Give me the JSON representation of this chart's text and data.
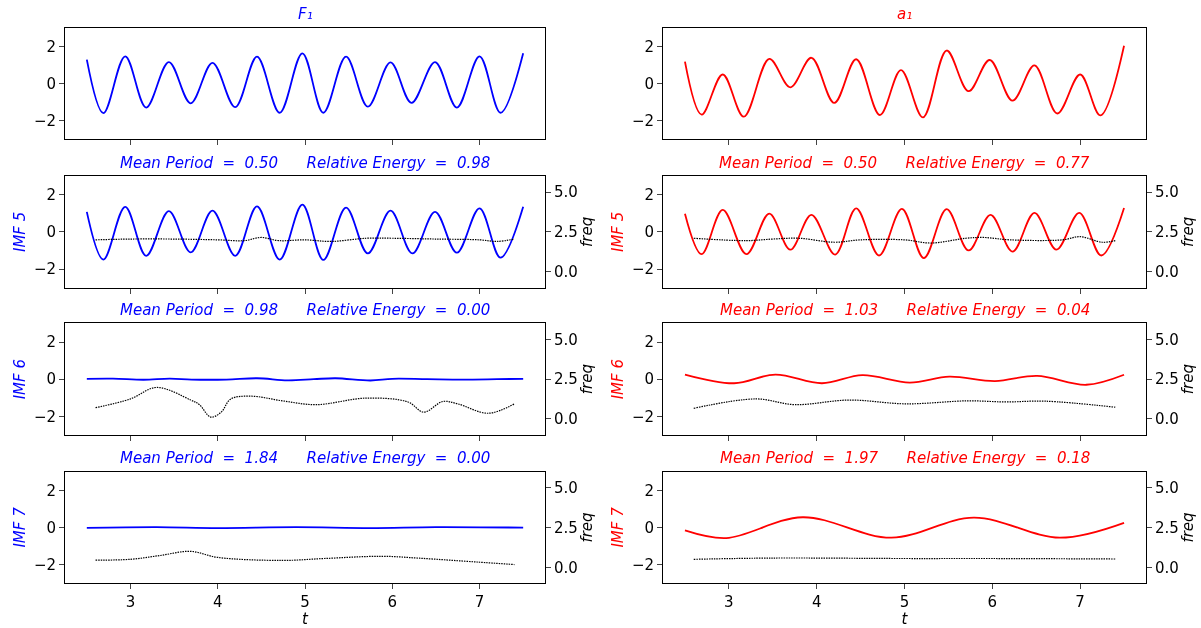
{
  "chart_data": [
    {
      "type": "line",
      "title": "F₁",
      "xlim": [
        2.25,
        7.75
      ],
      "xticks": [
        3,
        4,
        5,
        6,
        7
      ],
      "ylim": [
        -3,
        3
      ],
      "yticks": [
        -2,
        0,
        2
      ],
      "tick_labels": "y",
      "series": [
        {
          "color": "#0000ff",
          "x": [
            2.5,
            2.69,
            2.94,
            3.18,
            3.44,
            3.69,
            3.94,
            4.2,
            4.45,
            4.71,
            4.97,
            5.21,
            5.47,
            5.72,
            5.98,
            6.22,
            6.49,
            6.74,
            7.0,
            7.24,
            7.5
          ],
          "values": [
            1.29,
            -1.59,
            1.47,
            -1.29,
            1.16,
            -1.06,
            1.12,
            -1.27,
            1.45,
            -1.57,
            1.63,
            -1.57,
            1.45,
            -1.24,
            1.14,
            -1.04,
            1.16,
            -1.29,
            1.47,
            -1.57,
            1.63
          ]
        }
      ]
    },
    {
      "type": "line",
      "title": "a₁",
      "xlim": [
        2.25,
        7.75
      ],
      "xticks": [
        3,
        4,
        5,
        6,
        7
      ],
      "ylim": [
        -3,
        3
      ],
      "yticks": [
        -2,
        0,
        2
      ],
      "tick_labels": "y",
      "series": [
        {
          "color": "#ff0000",
          "x": [
            2.5,
            2.69,
            2.93,
            3.17,
            3.46,
            3.7,
            3.94,
            4.2,
            4.45,
            4.72,
            4.96,
            5.21,
            5.48,
            5.73,
            5.97,
            6.23,
            6.48,
            6.74,
            7.0,
            7.23,
            7.5
          ],
          "values": [
            1.18,
            -1.67,
            0.49,
            -1.78,
            1.33,
            -0.2,
            1.39,
            -1.04,
            1.31,
            -1.69,
            0.73,
            -1.82,
            1.78,
            -0.41,
            1.27,
            -0.92,
            0.98,
            -1.61,
            0.49,
            -1.71,
            2.04
          ]
        }
      ]
    },
    {
      "type": "line",
      "title": "Mean Period  =  0.50      Relative Energy  =  0.98",
      "ylabel": "IMF 5",
      "y2label": "freq",
      "xlim": [
        2.25,
        7.75
      ],
      "xticks": [
        3,
        4,
        5,
        6,
        7
      ],
      "ylim": [
        -3,
        3
      ],
      "yticks": [
        -2,
        0,
        2
      ],
      "y2lim": [
        -1,
        6
      ],
      "y2ticks": [
        {
          "value": 0,
          "label": "0.0"
        },
        {
          "value": 2.5,
          "label": "2.5"
        },
        {
          "value": 5,
          "label": "5.0"
        }
      ],
      "tick_labels": "y",
      "series": [
        {
          "color": "#0000ff",
          "x": [
            2.5,
            2.69,
            2.94,
            3.18,
            3.44,
            3.69,
            3.94,
            4.2,
            4.45,
            4.71,
            4.97,
            5.21,
            5.47,
            5.72,
            5.98,
            6.23,
            6.49,
            6.74,
            7.0,
            7.24,
            7.5
          ],
          "values": [
            1.08,
            -1.49,
            1.35,
            -1.29,
            1.12,
            -1.1,
            1.14,
            -1.29,
            1.37,
            -1.49,
            1.47,
            -1.51,
            1.31,
            -1.16,
            1.14,
            -1.16,
            1.08,
            -1.12,
            1.27,
            -1.39,
            1.35
          ]
        },
        {
          "color": "#000000",
          "axis": "y2",
          "line_style": "dotted",
          "x": [
            2.6,
            3.0,
            3.5,
            4.0,
            4.3,
            4.5,
            4.7,
            5.0,
            5.3,
            5.7,
            6.0,
            6.5,
            7.0,
            7.2,
            7.4
          ],
          "values": [
            2.0,
            2.05,
            2.05,
            2.0,
            1.95,
            2.15,
            1.95,
            2.0,
            1.9,
            2.1,
            2.1,
            2.05,
            2.0,
            1.9,
            2.05
          ]
        }
      ]
    },
    {
      "type": "line",
      "title": "Mean Period  =  0.50      Relative Energy  =  0.77",
      "ylabel": "IMF 5",
      "y2label": "freq",
      "xlim": [
        2.25,
        7.75
      ],
      "xticks": [
        3,
        4,
        5,
        6,
        7
      ],
      "ylim": [
        -3,
        3
      ],
      "yticks": [
        -2,
        0,
        2
      ],
      "y2lim": [
        -1,
        6
      ],
      "y2ticks": [
        {
          "value": 0,
          "label": "0.0"
        },
        {
          "value": 2.5,
          "label": "2.5"
        },
        {
          "value": 5,
          "label": "5.0"
        }
      ],
      "tick_labels": "y",
      "series": [
        {
          "color": "#ff0000",
          "x": [
            2.5,
            2.69,
            2.93,
            3.2,
            3.46,
            3.7,
            3.94,
            4.21,
            4.45,
            4.71,
            4.97,
            5.22,
            5.48,
            5.73,
            5.98,
            6.23,
            6.48,
            6.73,
            6.99,
            7.24,
            7.5
          ],
          "values": [
            0.98,
            -1.2,
            1.18,
            -1.2,
            0.98,
            -0.96,
            0.92,
            -1.22,
            1.27,
            -1.27,
            1.24,
            -1.41,
            1.22,
            -1.0,
            0.92,
            -1.06,
            1.02,
            -0.96,
            1.02,
            -1.27,
            1.29
          ]
        },
        {
          "color": "#000000",
          "axis": "y2",
          "line_style": "dotted",
          "x": [
            2.6,
            3.2,
            3.5,
            3.8,
            4.2,
            4.5,
            5.0,
            5.3,
            5.7,
            5.9,
            6.2,
            6.8,
            7.0,
            7.25,
            7.4
          ],
          "values": [
            2.1,
            1.95,
            2.05,
            2.1,
            1.85,
            2.0,
            2.0,
            1.8,
            2.1,
            2.15,
            2.0,
            2.0,
            2.2,
            1.85,
            1.95
          ]
        }
      ]
    },
    {
      "type": "line",
      "title": "Mean Period  =  0.98      Relative Energy  =  0.00",
      "ylabel": "IMF 6",
      "y2label": "freq",
      "xlim": [
        2.25,
        7.75
      ],
      "xticks": [
        3,
        4,
        5,
        6,
        7
      ],
      "ylim": [
        -3,
        3
      ],
      "yticks": [
        -2,
        0,
        2
      ],
      "y2lim": [
        -1,
        6
      ],
      "y2ticks": [
        {
          "value": 0,
          "label": "0.0"
        },
        {
          "value": 2.5,
          "label": "2.5"
        },
        {
          "value": 5,
          "label": "5.0"
        }
      ],
      "tick_labels": "y",
      "series": [
        {
          "color": "#0000ff",
          "x": [
            2.5,
            2.8,
            3.15,
            3.45,
            3.7,
            4.1,
            4.45,
            4.8,
            5.1,
            5.35,
            5.75,
            6.0,
            6.4,
            6.8,
            7.2,
            7.5
          ],
          "values": [
            0.02,
            0.03,
            -0.03,
            0.03,
            -0.02,
            -0.02,
            0.05,
            -0.06,
            0.0,
            0.05,
            -0.07,
            0.02,
            0.0,
            -0.02,
            0.0,
            0.02
          ]
        },
        {
          "color": "#000000",
          "axis": "y2",
          "line_style": "dotted",
          "x": [
            2.6,
            3.0,
            3.3,
            3.69,
            3.79,
            3.92,
            4.04,
            4.15,
            4.39,
            4.74,
            5.13,
            5.7,
            6.18,
            6.36,
            6.58,
            6.75,
            7.1,
            7.4
          ],
          "values": [
            0.71,
            1.26,
            1.98,
            1.19,
            0.9,
            0.12,
            0.43,
            1.26,
            1.43,
            1.14,
            0.9,
            1.31,
            1.07,
            0.43,
            1.1,
            0.95,
            0.36,
            0.95
          ]
        }
      ]
    },
    {
      "type": "line",
      "title": "Mean Period  =  1.03      Relative Energy  =  0.04",
      "ylabel": "IMF 6",
      "y2label": "freq",
      "xlim": [
        2.25,
        7.75
      ],
      "xticks": [
        3,
        4,
        5,
        6,
        7
      ],
      "ylim": [
        -3,
        3
      ],
      "yticks": [
        -2,
        0,
        2
      ],
      "y2lim": [
        -1,
        6
      ],
      "y2ticks": [
        {
          "value": 0,
          "label": "0.0"
        },
        {
          "value": 2.5,
          "label": "2.5"
        },
        {
          "value": 5,
          "label": "5.0"
        }
      ],
      "tick_labels": "y",
      "series": [
        {
          "color": "#ff0000",
          "x": [
            2.5,
            3.06,
            3.53,
            4.06,
            4.52,
            5.06,
            5.51,
            6.03,
            6.51,
            7.07,
            7.5
          ],
          "values": [
            0.25,
            -0.22,
            0.25,
            -0.22,
            0.22,
            -0.18,
            0.14,
            -0.1,
            0.18,
            -0.3,
            0.24
          ]
        },
        {
          "color": "#000000",
          "axis": "y2",
          "line_style": "dotted",
          "x": [
            2.6,
            3.31,
            3.75,
            4.37,
            5.02,
            5.72,
            6.16,
            6.6,
            7.4
          ],
          "values": [
            0.67,
            1.26,
            0.9,
            1.19,
            0.95,
            1.14,
            1.07,
            1.12,
            0.74
          ]
        }
      ]
    },
    {
      "type": "line",
      "title": "Mean Period  =  1.84      Relative Energy  =  0.00",
      "ylabel": "IMF 7",
      "y2label": "freq",
      "xlabel": "t",
      "xlim": [
        2.25,
        7.75
      ],
      "xticks": [
        3,
        4,
        5,
        6,
        7
      ],
      "ylim": [
        -3,
        3
      ],
      "yticks": [
        -2,
        0,
        2
      ],
      "y2lim": [
        -1,
        6
      ],
      "y2ticks": [
        {
          "value": 0,
          "label": "0.0"
        },
        {
          "value": 2.5,
          "label": "2.5"
        },
        {
          "value": 5,
          "label": "5.0"
        }
      ],
      "series": [
        {
          "color": "#0000ff",
          "x": [
            2.5,
            3.3,
            4.0,
            4.9,
            5.75,
            6.5,
            7.5
          ],
          "values": [
            -0.02,
            0.02,
            -0.03,
            0.02,
            -0.03,
            0.02,
            -0.01
          ]
        },
        {
          "color": "#000000",
          "axis": "y2",
          "line_style": "dotted",
          "x": [
            2.6,
            3.0,
            3.34,
            3.69,
            4.0,
            4.74,
            5.22,
            5.88,
            6.31,
            6.97,
            7.4
          ],
          "values": [
            0.45,
            0.5,
            0.74,
            1.0,
            0.62,
            0.43,
            0.55,
            0.69,
            0.57,
            0.33,
            0.17
          ]
        }
      ]
    },
    {
      "type": "line",
      "title": "Mean Period  =  1.97      Relative Energy  =  0.18",
      "ylabel": "IMF 7",
      "y2label": "freq",
      "xlabel": "t",
      "xlim": [
        2.25,
        7.75
      ],
      "xticks": [
        3,
        4,
        5,
        6,
        7
      ],
      "ylim": [
        -3,
        3
      ],
      "yticks": [
        -2,
        0,
        2
      ],
      "y2lim": [
        -1,
        6
      ],
      "y2ticks": [
        {
          "value": 0,
          "label": "0.0"
        },
        {
          "value": 2.5,
          "label": "2.5"
        },
        {
          "value": 5,
          "label": "5.0"
        }
      ],
      "series": [
        {
          "color": "#ff0000",
          "x": [
            2.5,
            2.97,
            3.84,
            4.85,
            5.79,
            6.77,
            7.5
          ],
          "values": [
            -0.16,
            -0.57,
            0.55,
            -0.55,
            0.53,
            -0.55,
            0.25
          ]
        },
        {
          "color": "#000000",
          "axis": "y2",
          "line_style": "dotted",
          "x": [
            2.6,
            3.5,
            5.0,
            6.0,
            7.4
          ],
          "values": [
            0.5,
            0.58,
            0.55,
            0.55,
            0.52
          ]
        }
      ]
    }
  ]
}
